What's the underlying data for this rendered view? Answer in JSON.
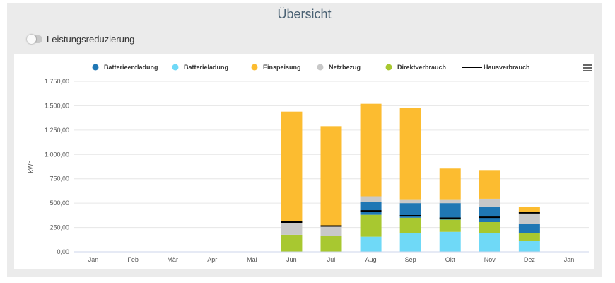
{
  "header": {
    "title": "Übersicht"
  },
  "toggle": {
    "label": "Leistungsreduzierung",
    "state": "off"
  },
  "menu": {
    "icon": "hamburger-menu-icon"
  },
  "colors": {
    "Batterieentladung": "#1f77b4",
    "Batterieladung": "#6fd9f7",
    "Einspeisung": "#fcbc30",
    "Netzbezug": "#c8c8c8",
    "Direktverbrauch": "#a8c830",
    "Hausverbrauch": "#000000"
  },
  "chart_data": {
    "type": "bar",
    "stacked": true,
    "ylabel": "kWh",
    "ylim": [
      0,
      1750
    ],
    "yticks": [
      "0,00",
      "250,00",
      "500,00",
      "750,00",
      "1.000,00",
      "1.250,00",
      "1.500,00",
      "1.750,00"
    ],
    "categories": [
      "Jan",
      "Feb",
      "Mär",
      "Apr",
      "Mai",
      "Jun",
      "Jul",
      "Aug",
      "Sep",
      "Okt",
      "Nov",
      "Dez",
      "Jan"
    ],
    "legend_position": "top",
    "grid": true,
    "series": [
      {
        "name": "Batterieentladung",
        "values": [
          0,
          0,
          0,
          0,
          0,
          0,
          0,
          0,
          0,
          0,
          0,
          0,
          0
        ],
        "stack": [
          0,
          0,
          0,
          0,
          0,
          0,
          0,
          130,
          150,
          170,
          160,
          90,
          0
        ]
      },
      {
        "name": "Batterieladung",
        "values": [
          0,
          0,
          0,
          0,
          0,
          0,
          0,
          155,
          195,
          205,
          195,
          110,
          0
        ]
      },
      {
        "name": "Einspeisung",
        "values": [
          0,
          0,
          0,
          0,
          0,
          1140,
          1030,
          950,
          935,
          315,
          295,
          50,
          0
        ]
      },
      {
        "name": "Netzbezug",
        "values": [
          0,
          0,
          0,
          0,
          0,
          125,
          100,
          60,
          40,
          40,
          80,
          125,
          0
        ]
      },
      {
        "name": "Direktverbrauch",
        "values": [
          0,
          0,
          0,
          0,
          0,
          175,
          160,
          225,
          155,
          125,
          110,
          85,
          0
        ]
      },
      {
        "name": "Hausverbrauch",
        "values": [
          null,
          null,
          null,
          null,
          null,
          305,
          265,
          420,
          370,
          345,
          355,
          400,
          null
        ]
      }
    ]
  }
}
